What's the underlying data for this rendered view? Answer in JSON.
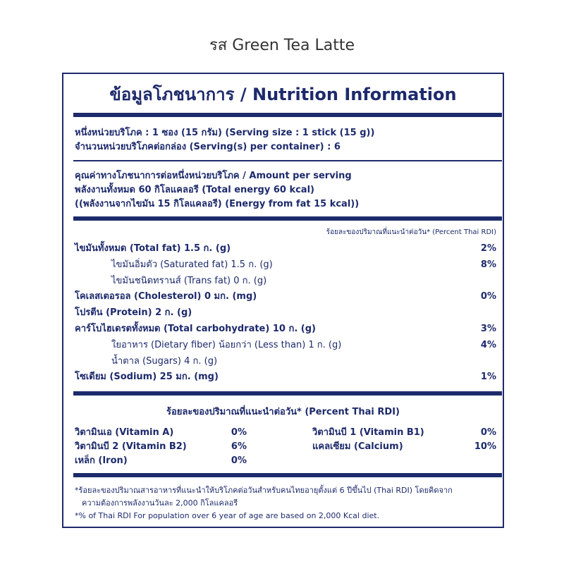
{
  "title": "รส Green Tea Latte",
  "label": {
    "heading": "ข้อมูลโภชนาการ / Nutrition Information",
    "serving": [
      "หนึ่งหน่วยบริโภค : 1 ซอง (15 กรัม) (Serving size : 1 stick (15 g))",
      "จำนวนหน่วยบริโภคต่อกล่อง (Serving(s) per container) : 6"
    ],
    "amount": [
      "คุณค่าทางโภชนาการต่อหนึ่งหน่วยบริโภค / Amount per serving",
      "พลังงานทั้งหมด 60 กิโลแคลอรี (Total energy 60 kcal)",
      "((พลังงานจากไขมัน 15 กิโลแคลอรี) (Energy from fat 15 kcal))"
    ],
    "rdi_header": "ร้อยละของปริมาณที่แนะนำต่อวัน* (Percent Thai RDI)",
    "nutrients": [
      {
        "label": "ไขมันทั้งหมด (Total fat) 1.5 ก. (g)",
        "percent": "2%",
        "sub": [
          {
            "label": "ไขมันอิ่มตัว (Saturated fat) 1.5 ก. (g)",
            "percent": "8%"
          },
          {
            "label": "ไขมันชนิดทรานส์ (Trans fat) 0 ก. (g)"
          }
        ]
      },
      {
        "label": "โคเลสเตอรอล (Cholesterol) 0 มก. (mg)",
        "percent": "0%"
      },
      {
        "label": "โปรตีน (Protein) 2 ก. (g)"
      },
      {
        "label": "คาร์โบไฮเดรตทั้งหมด (Total carbohydrate) 10 ก. (g)",
        "percent": "3%",
        "sub": [
          {
            "label": "ใยอาหาร (Dietary fiber) น้อยกว่า (Less than) 1 ก. (g)",
            "percent": "4%"
          },
          {
            "label": "น้ำตาล (Sugars) 4 ก. (g)"
          }
        ]
      },
      {
        "label": "โซเดียม (Sodium) 25 มก. (mg)",
        "percent": "1%"
      }
    ],
    "vitamins_header": "ร้อยละของปริมาณที่แนะนำต่อวัน* (Percent Thai RDI)",
    "vitamins": [
      {
        "name": "วิตามินเอ (Vitamin A)",
        "percent": "0%"
      },
      {
        "name": "วิตามินบี 1 (Vitamin B1)",
        "percent": "0%"
      },
      {
        "name": "วิตามินบี 2 (Vitamin B2)",
        "percent": "6%"
      },
      {
        "name": "แคลเซียม (Calcium)",
        "percent": "10%"
      },
      {
        "name": "เหล็ก (Iron)",
        "percent": "0%"
      }
    ],
    "footnotes": [
      "*ร้อยละของปริมาณสารอาหารที่แนะนำให้บริโภคต่อวันสำหรับคนไทยอายุตั้งแต่ 6 ปีขึ้นไป (Thai RDI) โดยคิดจาก",
      "ความต้องการพลังงานวันละ 2,000 กิโลแคลอรี",
      "*% of Thai RDI For population over 6 year of age are based on 2,000 Kcal diet."
    ]
  }
}
